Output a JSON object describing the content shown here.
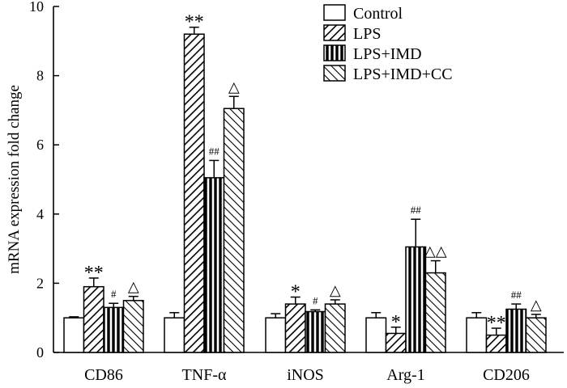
{
  "chart_data": {
    "type": "bar",
    "title": "",
    "xlabel": "",
    "ylabel": "mRNA expression fold change",
    "ylim": [
      0,
      10
    ],
    "yticks": [
      "0",
      "2",
      "4",
      "6",
      "8",
      "10"
    ],
    "categories": [
      "CD86",
      "TNF-α",
      "iNOS",
      "Arg-1",
      "CD206"
    ],
    "legend_position": "top-right",
    "series": [
      {
        "name": "Control",
        "pattern": "solid-white",
        "values": [
          1.0,
          1.0,
          1.0,
          1.0,
          1.0
        ],
        "errors": [
          0.03,
          0.15,
          0.12,
          0.15,
          0.15
        ],
        "annotations": [
          "",
          "",
          "",
          "",
          ""
        ]
      },
      {
        "name": "LPS",
        "pattern": "diagonal-up",
        "values": [
          1.9,
          9.2,
          1.4,
          0.55,
          0.5
        ],
        "errors": [
          0.25,
          0.2,
          0.2,
          0.18,
          0.2
        ],
        "annotations": [
          "**",
          "**",
          "*",
          "*",
          "**"
        ]
      },
      {
        "name": "LPS+IMD",
        "pattern": "vertical",
        "values": [
          1.3,
          5.05,
          1.18,
          3.05,
          1.25
        ],
        "errors": [
          0.12,
          0.5,
          0.05,
          0.8,
          0.15
        ],
        "annotations": [
          "#",
          "##",
          "#",
          "##",
          "##"
        ]
      },
      {
        "name": "LPS+IMD+CC",
        "pattern": "diagonal-down",
        "values": [
          1.5,
          7.05,
          1.4,
          2.3,
          1.0
        ],
        "errors": [
          0.12,
          0.35,
          0.12,
          0.35,
          0.1
        ],
        "annotations": [
          "△",
          "△",
          "△",
          "△△",
          "△"
        ]
      }
    ],
    "colors": {
      "stroke": "#000000",
      "fill": "#ffffff"
    }
  }
}
